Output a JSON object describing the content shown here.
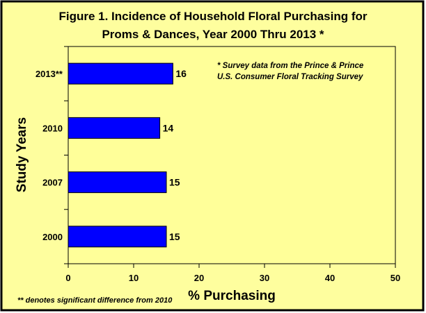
{
  "chart_data": {
    "type": "bar",
    "orientation": "horizontal",
    "title_line1": "Figure 1.  Incidence of Household Floral Purchasing for",
    "title_line2": "Proms & Dances, Year 2000 Thru 2013 *",
    "categories": [
      "2013**",
      "2010",
      "2007",
      "2000"
    ],
    "values": [
      16,
      14,
      15,
      15
    ],
    "xlabel": "% Purchasing",
    "ylabel": "Study Years",
    "xlim": [
      0,
      50
    ],
    "xticks": [
      0,
      10,
      20,
      30,
      40,
      50
    ],
    "grid": false,
    "bar_color": "#0000ff",
    "plot_background": "#ffff99",
    "frame_background": "#fefe9e",
    "annotation_line1": "*  Survey data from the Prince & Prince",
    "annotation_line2": "U.S. Consumer Floral Tracking Survey",
    "footnote": "** denotes significant difference from 2010"
  }
}
